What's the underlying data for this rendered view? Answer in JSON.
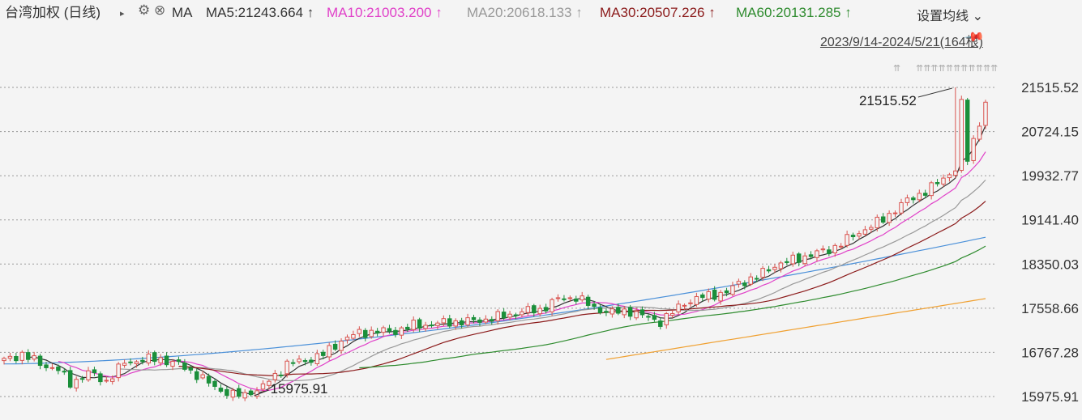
{
  "header": {
    "title": "台湾加权 (日线)",
    "ma_label": "MA",
    "ma_entries": [
      {
        "text": "MA5:21243.664 ↑",
        "color": "#333333"
      },
      {
        "text": "MA10:21003.200 ↑",
        "color": "#e040c8"
      },
      {
        "text": "MA20:20618.133 ↑",
        "color": "#999999"
      },
      {
        "text": "MA30:20507.226 ↑",
        "color": "#8b1a1a"
      },
      {
        "text": "MA60:20131.285 ↑",
        "color": "#2e8b2e"
      }
    ],
    "settings_label": "设置均线",
    "date_range": "2023/9/14-2024/5/21(164根)"
  },
  "chart_data": {
    "type": "candlestick",
    "title": "台湾加权 (日线)",
    "y_ticks": [
      "21515.52",
      "20724.15",
      "19932.77",
      "19141.40",
      "18350.03",
      "17558.66",
      "16767.28",
      "15975.91"
    ],
    "ylim": [
      15975.91,
      21515.52
    ],
    "n_candles": 164,
    "max_annotation": "21515.52",
    "min_annotation": "15975.91",
    "up_color": "#d9534f",
    "down_color": "#1a8f3a",
    "ohlc_anchor_closes": [
      [
        0,
        16620
      ],
      [
        3,
        16740
      ],
      [
        6,
        16560
      ],
      [
        9,
        16460
      ],
      [
        11,
        16210
      ],
      [
        14,
        16400
      ],
      [
        17,
        16250
      ],
      [
        20,
        16580
      ],
      [
        23,
        16640
      ],
      [
        26,
        16650
      ],
      [
        29,
        16550
      ],
      [
        32,
        16370
      ],
      [
        35,
        16140
      ],
      [
        38,
        16010
      ],
      [
        41,
        15990
      ],
      [
        44,
        16250
      ],
      [
        47,
        16560
      ],
      [
        50,
        16620
      ],
      [
        53,
        16730
      ],
      [
        56,
        16980
      ],
      [
        59,
        17120
      ],
      [
        62,
        17140
      ],
      [
        65,
        17150
      ],
      [
        68,
        17250
      ],
      [
        71,
        17270
      ],
      [
        74,
        17310
      ],
      [
        77,
        17320
      ],
      [
        80,
        17360
      ],
      [
        83,
        17420
      ],
      [
        86,
        17500
      ],
      [
        89,
        17530
      ],
      [
        92,
        17720
      ],
      [
        95,
        17760
      ],
      [
        98,
        17560
      ],
      [
        101,
        17480
      ],
      [
        104,
        17510
      ],
      [
        107,
        17380
      ],
      [
        109,
        17320
      ],
      [
        111,
        17480
      ],
      [
        113,
        17660
      ],
      [
        116,
        17760
      ],
      [
        118,
        17810
      ],
      [
        120,
        17840
      ],
      [
        122,
        18010
      ],
      [
        125,
        18120
      ],
      [
        128,
        18330
      ],
      [
        131,
        18420
      ],
      [
        134,
        18520
      ],
      [
        137,
        18600
      ],
      [
        140,
        18790
      ],
      [
        143,
        18980
      ],
      [
        146,
        19150
      ],
      [
        149,
        19420
      ],
      [
        152,
        19600
      ],
      [
        155,
        19790
      ],
      [
        158,
        20070
      ],
      [
        160,
        20220
      ]
    ],
    "series": [
      {
        "name": "MA5",
        "color": "#333333",
        "last": 21243.664
      },
      {
        "name": "MA10",
        "color": "#e040c8",
        "last": 21003.2
      },
      {
        "name": "MA20",
        "color": "#999999",
        "last": 20618.133
      },
      {
        "name": "MA30",
        "color": "#8b1a1a",
        "last": 20507.226
      },
      {
        "name": "MA60",
        "color": "#2e8b2e",
        "last": 20131.285
      }
    ]
  }
}
